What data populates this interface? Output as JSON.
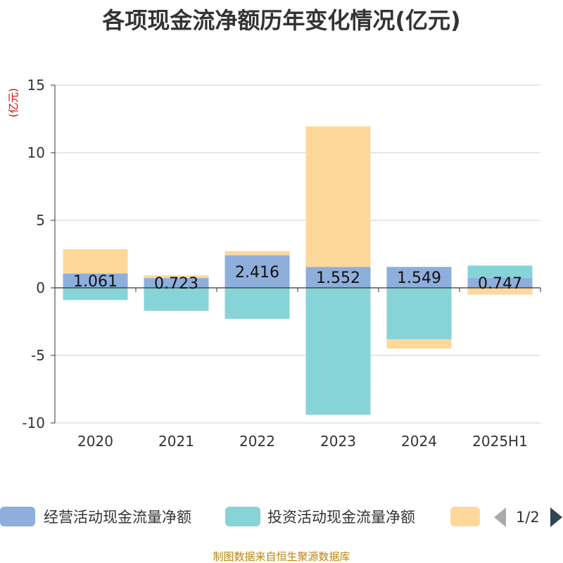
{
  "title": "各项现金流净额历年变化情况(亿元)",
  "source": "制图数据来自恒生聚源数据库",
  "legend": {
    "items": [
      {
        "name": "经营活动现金流量净额",
        "color": "#8eaedc"
      },
      {
        "name": "投资活动现金流量净额",
        "color": "#86d4d8"
      },
      {
        "name": "",
        "color": "#fed89a"
      }
    ],
    "page": "1/2"
  },
  "chart_data": {
    "type": "bar",
    "stacked": true,
    "title": "各项现金流净额历年变化情况(亿元)",
    "ylabel": "(亿元)",
    "ylim": [
      -10,
      15
    ],
    "yticks": [
      15,
      10,
      5,
      0,
      -5,
      -10
    ],
    "categories": [
      "2020",
      "2021",
      "2022",
      "2023",
      "2024",
      "2025H1"
    ],
    "series": [
      {
        "name": "经营活动现金流量净额",
        "color": "#8eaedc",
        "values": [
          1.061,
          0.723,
          2.416,
          1.552,
          1.549,
          0.747
        ],
        "labels": [
          "1.061",
          "0.723",
          "2.416",
          "1.552",
          "1.549",
          "0.747"
        ]
      },
      {
        "name": "投资活动现金流量净额",
        "color": "#86d4d8",
        "values": [
          -0.9,
          -1.7,
          -2.3,
          -9.4,
          -3.8,
          0.9
        ]
      },
      {
        "color": "#fed89a",
        "values": [
          1.8,
          0.2,
          0.3,
          10.4,
          -0.7,
          -0.5
        ]
      }
    ],
    "grid": true,
    "legend_position": "bottom"
  }
}
